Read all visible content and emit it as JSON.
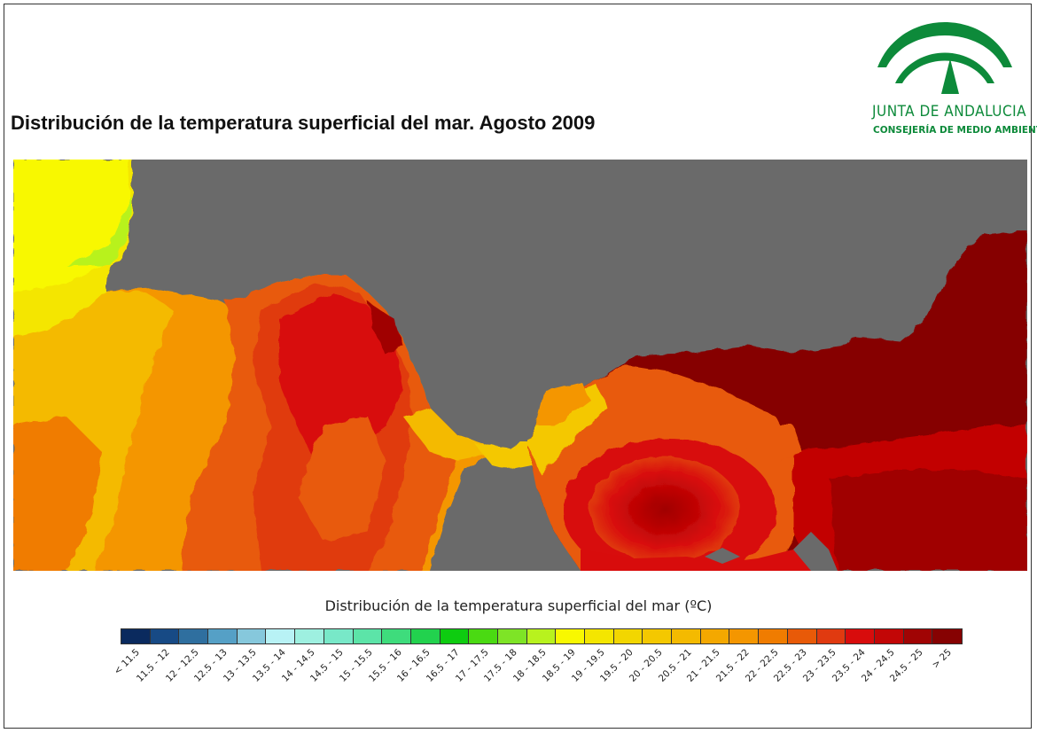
{
  "title": "Distribución de la temperatura superficial del mar. Agosto 2009",
  "logo": {
    "line1": "JUNTA DE ANDALUCIA",
    "line2": "CONSEJERÍA DE MEDIO AMBIENTE",
    "color": "#0d8a3a"
  },
  "legend": {
    "title": "Distribución de la temperatura superficial del mar (ºC)",
    "classes": [
      {
        "label": "< 11.5",
        "color": "#0a2a5e"
      },
      {
        "label": "11.5 - 12",
        "color": "#174a85"
      },
      {
        "label": "12 - 12.5",
        "color": "#2f6f9f"
      },
      {
        "label": "12.5 - 13",
        "color": "#55a0c6"
      },
      {
        "label": "13 - 13.5",
        "color": "#86c8dc"
      },
      {
        "label": "13.5 - 14",
        "color": "#b8f2f5"
      },
      {
        "label": "14 - 14.5",
        "color": "#9ef0e0"
      },
      {
        "label": "14.5 - 15",
        "color": "#78e8c8"
      },
      {
        "label": "15 - 15.5",
        "color": "#5ce4a8"
      },
      {
        "label": "15.5 - 16",
        "color": "#3edc7c"
      },
      {
        "label": "16 - 16.5",
        "color": "#22d24e"
      },
      {
        "label": "16.5 - 17",
        "color": "#0ecc10"
      },
      {
        "label": "17 - 17.5",
        "color": "#4ada12"
      },
      {
        "label": "17.5 - 18",
        "color": "#7ee426"
      },
      {
        "label": "18 - 18.5",
        "color": "#b8f21e"
      },
      {
        "label": "18.5 - 19",
        "color": "#f8f800"
      },
      {
        "label": "19 - 19.5",
        "color": "#f4e600"
      },
      {
        "label": "19.5 - 20",
        "color": "#f2d600"
      },
      {
        "label": "20 - 20.5",
        "color": "#f4c800"
      },
      {
        "label": "20.5 - 21",
        "color": "#f4ba00"
      },
      {
        "label": "21 - 21.5",
        "color": "#f4a800"
      },
      {
        "label": "21.5 - 22",
        "color": "#f49600"
      },
      {
        "label": "22 - 22.5",
        "color": "#f07c00"
      },
      {
        "label": "22.5 - 23",
        "color": "#e85a08"
      },
      {
        "label": "23 - 23.5",
        "color": "#e03a10"
      },
      {
        "label": "23.5 - 24",
        "color": "#d80c0c"
      },
      {
        "label": "24 - 24.5",
        "color": "#c20606"
      },
      {
        "label": "24.5 - 25",
        "color": "#a00404"
      },
      {
        "label": "> 25",
        "color": "#860202"
      }
    ]
  },
  "colors": {
    "land": "#6a6a6a"
  }
}
